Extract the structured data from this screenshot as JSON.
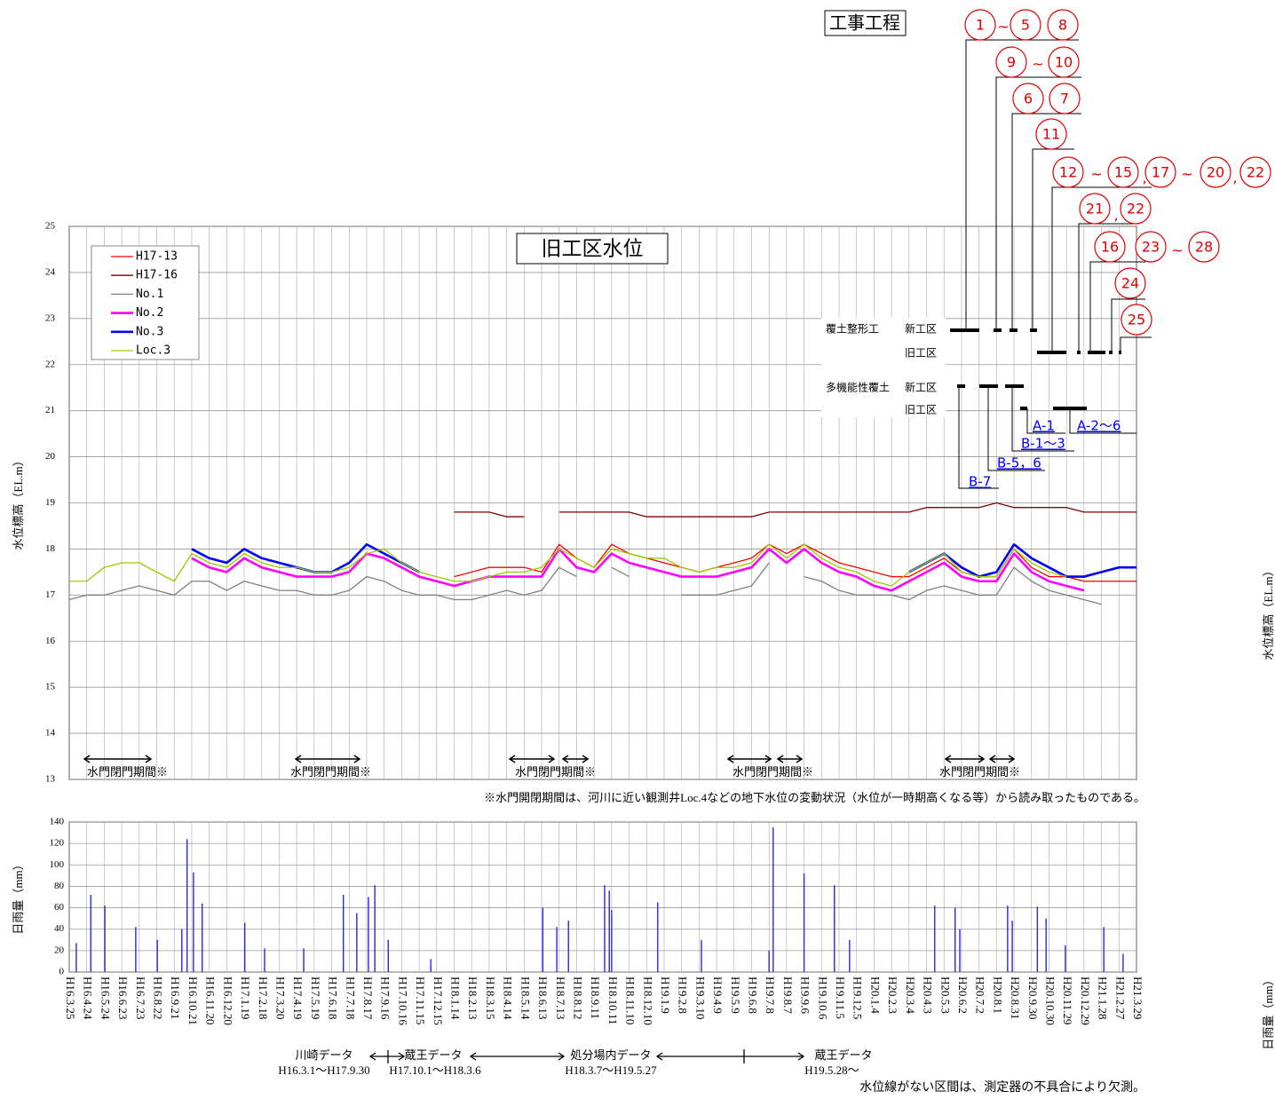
{
  "chart_data": [
    {
      "type": "line",
      "title": "旧工区水位",
      "ylabel": "水位標高（EL.m）",
      "ylabel_right": "水位標高（EL.m）",
      "x": [
        0,
        30,
        60,
        90,
        120,
        150,
        180,
        210,
        240,
        270,
        300,
        330,
        360,
        390,
        420,
        450,
        480,
        510,
        540,
        570,
        600,
        630,
        660,
        690,
        720,
        750,
        780,
        810,
        840,
        870,
        900,
        930,
        960,
        990,
        1020,
        1050,
        1080,
        1110,
        1140,
        1170,
        1200,
        1230,
        1260,
        1290,
        1320,
        1350,
        1380,
        1410,
        1440,
        1470,
        1500,
        1530,
        1560,
        1590,
        1620,
        1650,
        1680,
        1710,
        1740,
        1770,
        1800,
        1830
      ],
      "xlim": [
        0,
        1830
      ],
      "ylim": [
        13,
        25
      ],
      "yticks": [
        13,
        14,
        15,
        16,
        17,
        18,
        19,
        20,
        21,
        22,
        23,
        24,
        25
      ],
      "grid": true,
      "legend": "upper left",
      "series": [
        {
          "name": "H17-13",
          "color": "#ff0000",
          "values": [
            null,
            null,
            null,
            null,
            null,
            null,
            null,
            null,
            null,
            null,
            null,
            null,
            null,
            null,
            null,
            null,
            null,
            null,
            null,
            null,
            null,
            null,
            17.4,
            17.5,
            17.6,
            17.6,
            17.6,
            17.5,
            18.1,
            17.8,
            17.6,
            18.1,
            17.9,
            17.8,
            17.7,
            17.6,
            17.5,
            17.6,
            17.7,
            17.8,
            18.1,
            17.9,
            18.1,
            17.9,
            17.7,
            17.6,
            17.5,
            17.4,
            17.4,
            17.6,
            17.8,
            17.5,
            17.4,
            17.4,
            18.0,
            17.6,
            17.4,
            17.4,
            17.3,
            17.3,
            17.3,
            17.3
          ]
        },
        {
          "name": "H17-16",
          "color": "#800000",
          "values": [
            null,
            null,
            null,
            null,
            null,
            null,
            null,
            null,
            null,
            null,
            null,
            null,
            null,
            null,
            null,
            null,
            null,
            null,
            null,
            null,
            null,
            null,
            18.8,
            18.8,
            18.8,
            18.7,
            18.7,
            null,
            18.8,
            18.8,
            18.8,
            18.8,
            18.8,
            18.7,
            18.7,
            18.7,
            18.7,
            18.7,
            18.7,
            18.7,
            18.8,
            18.8,
            18.8,
            18.8,
            18.8,
            18.8,
            18.8,
            18.8,
            18.8,
            18.9,
            18.9,
            18.9,
            18.9,
            19.0,
            18.9,
            18.9,
            18.9,
            18.9,
            18.8,
            18.8,
            18.8,
            18.8
          ]
        },
        {
          "name": "No.1",
          "color": "#808080",
          "values": [
            16.9,
            17.0,
            17.0,
            17.1,
            17.2,
            17.1,
            17.0,
            17.3,
            17.3,
            17.1,
            17.3,
            17.2,
            17.1,
            17.1,
            17.0,
            17.0,
            17.1,
            17.4,
            17.3,
            17.1,
            17.0,
            17.0,
            16.9,
            16.9,
            17.0,
            17.1,
            17.0,
            17.1,
            17.6,
            17.4,
            null,
            17.6,
            17.4,
            null,
            null,
            17.0,
            17.0,
            17.0,
            17.1,
            17.2,
            17.7,
            null,
            17.4,
            17.3,
            17.1,
            17.0,
            17.0,
            17.0,
            16.9,
            17.1,
            17.2,
            17.1,
            17.0,
            17.0,
            17.6,
            17.3,
            17.1,
            17.0,
            16.9,
            16.8,
            null,
            null
          ]
        },
        {
          "name": "No.2",
          "color": "#ff00ff",
          "values": [
            null,
            null,
            null,
            null,
            null,
            null,
            null,
            17.8,
            17.6,
            17.5,
            17.8,
            17.6,
            17.5,
            17.4,
            17.4,
            17.4,
            17.5,
            17.9,
            17.8,
            17.6,
            17.4,
            17.3,
            17.2,
            17.3,
            17.4,
            17.4,
            17.4,
            17.4,
            18.0,
            17.6,
            17.5,
            17.9,
            17.7,
            17.6,
            17.5,
            17.4,
            17.4,
            17.4,
            17.5,
            17.6,
            18.0,
            17.7,
            18.0,
            17.7,
            17.5,
            17.4,
            17.2,
            17.1,
            17.3,
            17.5,
            17.7,
            17.4,
            17.3,
            17.3,
            17.9,
            17.5,
            17.3,
            17.2,
            17.1,
            null,
            null,
            null
          ]
        },
        {
          "name": "No.3",
          "color": "#0000ff",
          "values": [
            null,
            null,
            null,
            null,
            null,
            null,
            null,
            18.0,
            17.8,
            17.7,
            18.0,
            17.8,
            17.7,
            17.6,
            17.5,
            17.5,
            17.7,
            18.1,
            17.9,
            17.7,
            17.5,
            null,
            null,
            null,
            null,
            null,
            null,
            null,
            null,
            null,
            null,
            null,
            null,
            null,
            null,
            null,
            null,
            null,
            null,
            null,
            null,
            null,
            null,
            null,
            null,
            null,
            null,
            null,
            17.5,
            17.7,
            17.9,
            17.6,
            17.4,
            17.5,
            18.1,
            17.8,
            17.6,
            17.4,
            17.4,
            17.5,
            17.6,
            17.6
          ]
        },
        {
          "name": "Loc.3",
          "color": "#99cc00",
          "values": [
            17.3,
            17.3,
            17.6,
            17.7,
            17.7,
            17.5,
            17.3,
            17.9,
            17.7,
            17.6,
            17.9,
            17.7,
            17.6,
            17.6,
            17.5,
            17.5,
            17.6,
            17.9,
            18.0,
            17.7,
            17.5,
            17.4,
            17.3,
            17.3,
            17.4,
            17.5,
            17.5,
            17.6,
            18.0,
            17.8,
            17.6,
            18.0,
            17.9,
            17.8,
            17.8,
            17.6,
            17.5,
            17.6,
            17.6,
            17.7,
            18.1,
            17.8,
            18.1,
            17.8,
            17.6,
            17.5,
            17.3,
            17.2,
            17.5,
            17.7,
            17.9,
            17.5,
            17.4,
            17.4,
            18.0,
            17.7,
            17.5,
            17.4,
            null,
            null,
            null,
            null
          ]
        }
      ],
      "gate_periods": [
        "水門閉門期間※",
        "水門閉門期間※",
        "水門閉門期間※",
        "水門閉門期間※",
        "水門閉門期間※"
      ],
      "footnote": "※水門開閉期間は、河川に近い観測井Loc.4などの地下水位の変動状況（水位が一時期高くなる等）から読み取ったものである。"
    },
    {
      "type": "bar",
      "ylabel": "日雨量（mm）",
      "ylabel_right": "日雨量（mm）",
      "color": "#2b2bd6",
      "x": [
        12,
        37,
        61,
        114,
        151,
        193,
        202,
        213,
        228,
        301,
        335,
        402,
        470,
        493,
        513,
        524,
        547,
        620,
        812,
        836,
        856,
        918,
        926,
        930,
        1009,
        1084,
        1200,
        1207,
        1260,
        1312,
        1338,
        1484,
        1519,
        1527,
        1609,
        1617,
        1660,
        1675,
        1708,
        1774,
        1807
      ],
      "values": [
        27,
        72,
        62,
        42,
        30,
        40,
        124,
        93,
        64,
        46,
        22,
        22,
        72,
        55,
        70,
        81,
        30,
        12,
        60,
        42,
        48,
        81,
        76,
        58,
        65,
        30,
        20,
        135,
        92,
        81,
        30,
        62,
        60,
        40,
        62,
        48,
        61,
        50,
        25,
        42,
        17
      ],
      "xlim": [
        0,
        1830
      ],
      "ylim": [
        0,
        140
      ],
      "yticks": [
        0,
        20,
        40,
        60,
        80,
        100,
        120,
        140
      ],
      "grid": true,
      "xticks": [
        {
          "value": 0,
          "label": "H16.3.25"
        },
        {
          "value": 30,
          "label": "H16.4.24"
        },
        {
          "value": 60,
          "label": "H16.5.24"
        },
        {
          "value": 90,
          "label": "H16.6.23"
        },
        {
          "value": 120,
          "label": "H16.7.23"
        },
        {
          "value": 150,
          "label": "H16.8.22"
        },
        {
          "value": 180,
          "label": "H16.9.21"
        },
        {
          "value": 210,
          "label": "H16.10.21"
        },
        {
          "value": 240,
          "label": "H16.11.20"
        },
        {
          "value": 270,
          "label": "H16.12.20"
        },
        {
          "value": 300,
          "label": "H17.1.19"
        },
        {
          "value": 330,
          "label": "H17.2.18"
        },
        {
          "value": 360,
          "label": "H17.3.20"
        },
        {
          "value": 390,
          "label": "H17.4.19"
        },
        {
          "value": 420,
          "label": "H17.5.19"
        },
        {
          "value": 450,
          "label": "H17.6.18"
        },
        {
          "value": 480,
          "label": "H17.7.18"
        },
        {
          "value": 510,
          "label": "H17.8.17"
        },
        {
          "value": 540,
          "label": "H17.9.16"
        },
        {
          "value": 570,
          "label": "H17.10.16"
        },
        {
          "value": 600,
          "label": "H17.11.15"
        },
        {
          "value": 630,
          "label": "H17.12.15"
        },
        {
          "value": 660,
          "label": "H18.1.14"
        },
        {
          "value": 690,
          "label": "H18.2.13"
        },
        {
          "value": 720,
          "label": "H18.3.15"
        },
        {
          "value": 750,
          "label": "H18.4.14"
        },
        {
          "value": 780,
          "label": "H18.5.14"
        },
        {
          "value": 810,
          "label": "H18.6.13"
        },
        {
          "value": 840,
          "label": "H18.7.13"
        },
        {
          "value": 870,
          "label": "H18.8.12"
        },
        {
          "value": 900,
          "label": "H18.9.11"
        },
        {
          "value": 930,
          "label": "H18.10.11"
        },
        {
          "value": 960,
          "label": "H18.11.10"
        },
        {
          "value": 990,
          "label": "H18.12.10"
        },
        {
          "value": 1020,
          "label": "H19.1.9"
        },
        {
          "value": 1050,
          "label": "H19.2.8"
        },
        {
          "value": 1080,
          "label": "H19.3.10"
        },
        {
          "value": 1110,
          "label": "H19.4.9"
        },
        {
          "value": 1140,
          "label": "H19.5.9"
        },
        {
          "value": 1170,
          "label": "H19.6.8"
        },
        {
          "value": 1200,
          "label": "H19.7.8"
        },
        {
          "value": 1230,
          "label": "H19.8.7"
        },
        {
          "value": 1260,
          "label": "H19.9.6"
        },
        {
          "value": 1290,
          "label": "H19.10.6"
        },
        {
          "value": 1320,
          "label": "H19.11.5"
        },
        {
          "value": 1350,
          "label": "H19.12.5"
        },
        {
          "value": 1380,
          "label": "H20.1.4"
        },
        {
          "value": 1410,
          "label": "H20.2.3"
        },
        {
          "value": 1440,
          "label": "H20.3.4"
        },
        {
          "value": 1470,
          "label": "H20.4.3"
        },
        {
          "value": 1500,
          "label": "H20.5.3"
        },
        {
          "value": 1530,
          "label": "H20.6.2"
        },
        {
          "value": 1560,
          "label": "H20.7.2"
        },
        {
          "value": 1590,
          "label": "H20.8.1"
        },
        {
          "value": 1620,
          "label": "H20.8.31"
        },
        {
          "value": 1650,
          "label": "H20.9.30"
        },
        {
          "value": 1680,
          "label": "H20.10.30"
        },
        {
          "value": 1710,
          "label": "H20.11.29"
        },
        {
          "value": 1740,
          "label": "H20.12.29"
        },
        {
          "value": 1770,
          "label": "H21.1.28"
        },
        {
          "value": 1800,
          "label": "H21.2.27"
        },
        {
          "value": 1830,
          "label": "H21.3.29"
        }
      ],
      "sources": [
        {
          "name": "川崎データ",
          "period": "H16.3.1～H17.9.30"
        },
        {
          "name": "蔵王データ",
          "period": "H17.10.1～H18.3.6"
        },
        {
          "name": "処分場内データ",
          "period": "H18.3.7～H19.5.27"
        },
        {
          "name": "蔵王データ",
          "period": "H19.5.28～"
        }
      ],
      "note": "水位線がない区間は、測定器の不具合により欠測。"
    }
  ],
  "schedule": {
    "title": "工事工程",
    "markers": [
      "1",
      "~",
      "5",
      "8",
      "9",
      "~",
      "10",
      "6",
      "7",
      "11",
      "12",
      "~",
      "15",
      ",",
      "17",
      "~",
      "20",
      ",",
      "22",
      "21",
      ",",
      "22",
      "16",
      "23",
      "~",
      "28",
      "24",
      "25"
    ],
    "rows": [
      "覆土整形工",
      "新工区",
      "旧工区",
      "多機能性覆土",
      "新工区",
      "旧工区"
    ],
    "work_items": [
      "A-1",
      "A-2～6",
      "B-1～3",
      "B-5，6",
      "B-7"
    ]
  }
}
